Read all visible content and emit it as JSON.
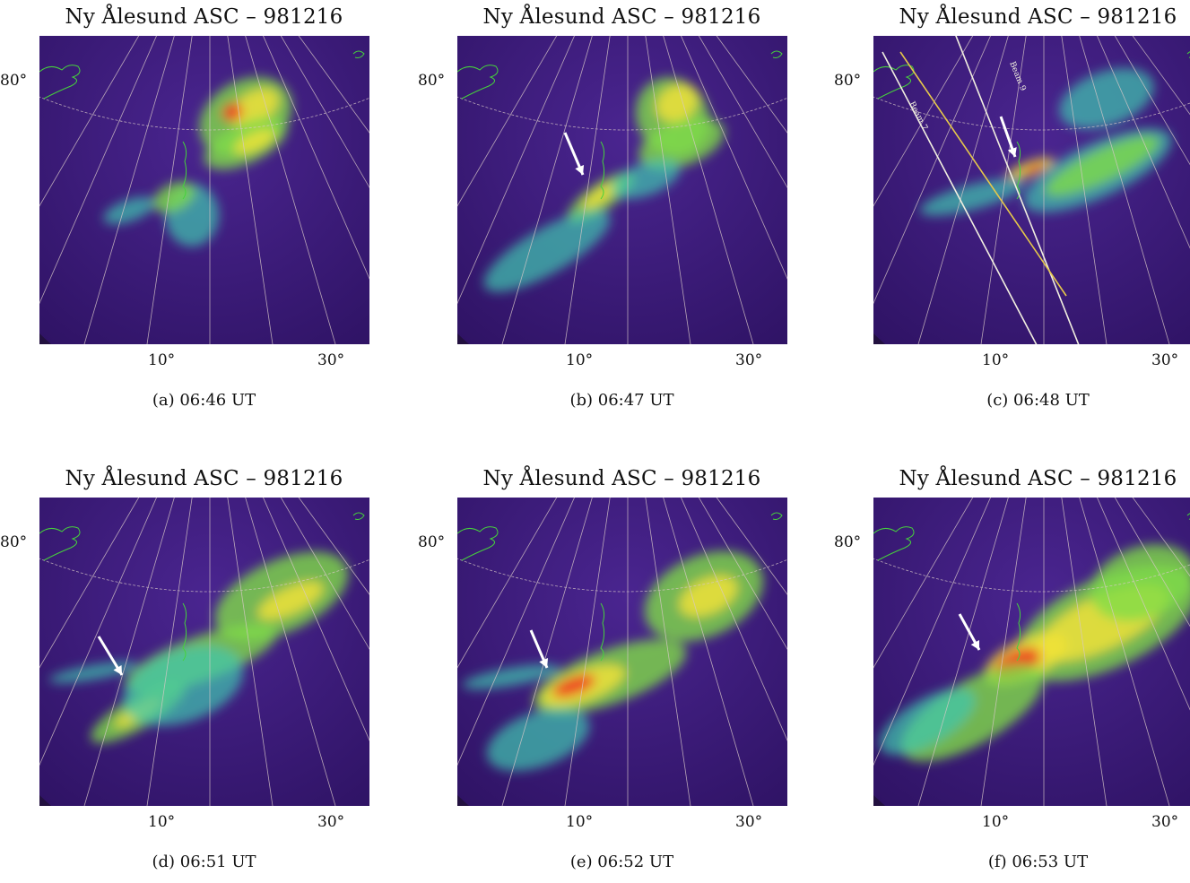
{
  "panels": [
    {
      "title": "Ny Ålesund ASC – 981216",
      "lat_label": "80°",
      "lon_labels": [
        "10°",
        "30°"
      ],
      "caption": "(a) 06:46 UT",
      "arrow": false,
      "beams": []
    },
    {
      "title": "Ny Ålesund ASC – 981216",
      "lat_label": "80°",
      "lon_labels": [
        "10°",
        "30°"
      ],
      "caption": "(b) 06:47 UT",
      "arrow": true,
      "beams": []
    },
    {
      "title": "Ny Ålesund ASC – 981216",
      "lat_label": "80°",
      "lon_labels": [
        "10°",
        "30°"
      ],
      "caption": "(c) 06:48 UT",
      "arrow": true,
      "beams": [
        "Beam 7",
        "Beam 9"
      ]
    },
    {
      "title": "Ny Ålesund ASC – 981216",
      "lat_label": "80°",
      "lon_labels": [
        "10°",
        "30°"
      ],
      "caption": "(d) 06:51 UT",
      "arrow": true,
      "beams": []
    },
    {
      "title": "Ny Ålesund ASC – 981216",
      "lat_label": "80°",
      "lon_labels": [
        "10°",
        "30°"
      ],
      "caption": "(e) 06:52 UT",
      "arrow": true,
      "beams": []
    },
    {
      "title": "Ny Ålesund ASC – 981216",
      "lat_label": "80°",
      "lon_labels": [
        "10°",
        "30°"
      ],
      "caption": "(f) 06:53 UT",
      "arrow": true,
      "beams": []
    }
  ],
  "colors": {
    "sky_background": "#3a1a72",
    "faint_aurora": "#2f6fd0",
    "aurora_mid": "#3fc7b0",
    "aurora_green": "#7fdc48",
    "aurora_yellow": "#f0e23a",
    "aurora_peak": "#f03a22",
    "coastline": "#46d23c",
    "grid": "#d8c8c8",
    "beam_white": "#f2efe0",
    "beam_yellow": "#e6c84a"
  }
}
